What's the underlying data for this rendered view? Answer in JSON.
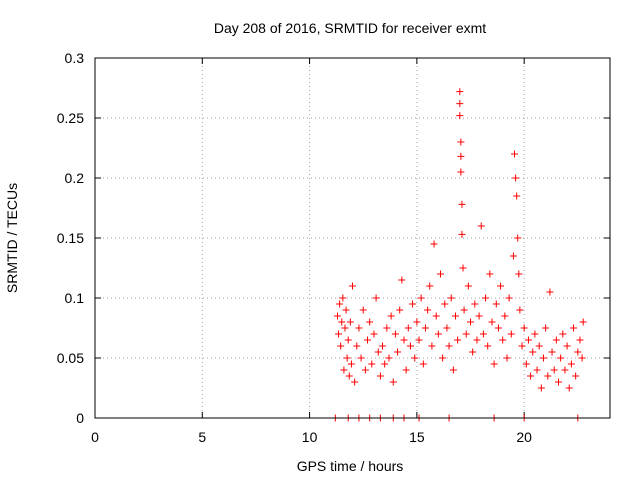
{
  "chart_data": {
    "type": "scatter",
    "title": "Day 208 of 2016, SRMTID for receiver exmt",
    "xlabel": "GPS time / hours",
    "ylabel": "SRMTID / TECUs",
    "xlim": [
      0,
      24
    ],
    "ylim": [
      0,
      0.3
    ],
    "x_ticks": [
      0,
      5,
      10,
      15,
      20
    ],
    "x_tick_labels": [
      "0",
      "5",
      "10",
      "15",
      "20"
    ],
    "y_ticks": [
      0,
      0.05,
      0.1,
      0.15,
      0.2,
      0.25,
      0.3
    ],
    "y_tick_labels": [
      "0",
      "0.05",
      "0.1",
      "0.15",
      "0.2",
      "0.25",
      "0.3"
    ],
    "grid": true,
    "marker": "+",
    "series": [
      {
        "name": "SRMTID",
        "color": "#ff0000",
        "points": [
          [
            11.3,
            0.085
          ],
          [
            11.35,
            0.07
          ],
          [
            11.4,
            0.095
          ],
          [
            11.45,
            0.06
          ],
          [
            11.5,
            0.08
          ],
          [
            11.55,
            0.1
          ],
          [
            11.6,
            0.04
          ],
          [
            11.65,
            0.075
          ],
          [
            11.7,
            0.09
          ],
          [
            11.75,
            0.05
          ],
          [
            11.8,
            0.065
          ],
          [
            11.85,
            0.035
          ],
          [
            11.9,
            0.08
          ],
          [
            11.95,
            0.045
          ],
          [
            12.0,
            0.11
          ],
          [
            12.1,
            0.03
          ],
          [
            12.2,
            0.06
          ],
          [
            12.3,
            0.075
          ],
          [
            12.4,
            0.05
          ],
          [
            12.5,
            0.09
          ],
          [
            12.6,
            0.04
          ],
          [
            12.7,
            0.065
          ],
          [
            12.8,
            0.08
          ],
          [
            12.9,
            0.045
          ],
          [
            13.0,
            0.07
          ],
          [
            13.1,
            0.1
          ],
          [
            13.2,
            0.055
          ],
          [
            13.3,
            0.035
          ],
          [
            13.4,
            0.06
          ],
          [
            13.5,
            0.045
          ],
          [
            13.6,
            0.075
          ],
          [
            13.7,
            0.05
          ],
          [
            13.8,
            0.085
          ],
          [
            13.9,
            0.03
          ],
          [
            14.0,
            0.07
          ],
          [
            14.1,
            0.055
          ],
          [
            14.2,
            0.09
          ],
          [
            14.3,
            0.115
          ],
          [
            14.4,
            0.065
          ],
          [
            14.5,
            0.04
          ],
          [
            14.6,
            0.075
          ],
          [
            14.7,
            0.06
          ],
          [
            14.8,
            0.095
          ],
          [
            14.9,
            0.05
          ],
          [
            15.0,
            0.08
          ],
          [
            15.1,
            0.065
          ],
          [
            15.2,
            0.1
          ],
          [
            15.3,
            0.045
          ],
          [
            15.4,
            0.075
          ],
          [
            15.5,
            0.09
          ],
          [
            15.6,
            0.11
          ],
          [
            15.7,
            0.06
          ],
          [
            15.8,
            0.145
          ],
          [
            15.9,
            0.085
          ],
          [
            16.0,
            0.07
          ],
          [
            16.1,
            0.12
          ],
          [
            16.2,
            0.05
          ],
          [
            16.3,
            0.095
          ],
          [
            16.4,
            0.075
          ],
          [
            16.5,
            0.06
          ],
          [
            16.6,
            0.1
          ],
          [
            16.7,
            0.04
          ],
          [
            16.8,
            0.085
          ],
          [
            16.9,
            0.065
          ],
          [
            17.0,
            0.272
          ],
          [
            17.0,
            0.262
          ],
          [
            17.0,
            0.252
          ],
          [
            17.05,
            0.23
          ],
          [
            17.05,
            0.218
          ],
          [
            17.05,
            0.205
          ],
          [
            17.1,
            0.178
          ],
          [
            17.1,
            0.153
          ],
          [
            17.15,
            0.125
          ],
          [
            17.2,
            0.09
          ],
          [
            17.3,
            0.07
          ],
          [
            17.4,
            0.11
          ],
          [
            17.5,
            0.08
          ],
          [
            17.6,
            0.055
          ],
          [
            17.7,
            0.095
          ],
          [
            17.8,
            0.065
          ],
          [
            17.9,
            0.085
          ],
          [
            18.0,
            0.16
          ],
          [
            18.1,
            0.07
          ],
          [
            18.2,
            0.1
          ],
          [
            18.3,
            0.06
          ],
          [
            18.4,
            0.12
          ],
          [
            18.5,
            0.08
          ],
          [
            18.6,
            0.045
          ],
          [
            18.7,
            0.095
          ],
          [
            18.8,
            0.075
          ],
          [
            18.9,
            0.11
          ],
          [
            19.0,
            0.065
          ],
          [
            19.1,
            0.085
          ],
          [
            19.2,
            0.05
          ],
          [
            19.3,
            0.1
          ],
          [
            19.4,
            0.07
          ],
          [
            19.5,
            0.135
          ],
          [
            19.55,
            0.22
          ],
          [
            19.6,
            0.2
          ],
          [
            19.65,
            0.185
          ],
          [
            19.7,
            0.15
          ],
          [
            19.75,
            0.12
          ],
          [
            19.8,
            0.09
          ],
          [
            19.9,
            0.06
          ],
          [
            20.0,
            0.075
          ],
          [
            20.1,
            0.045
          ],
          [
            20.2,
            0.065
          ],
          [
            20.3,
            0.035
          ],
          [
            20.4,
            0.055
          ],
          [
            20.5,
            0.07
          ],
          [
            20.6,
            0.04
          ],
          [
            20.7,
            0.06
          ],
          [
            20.8,
            0.025
          ],
          [
            20.9,
            0.05
          ],
          [
            21.0,
            0.075
          ],
          [
            21.1,
            0.035
          ],
          [
            21.2,
            0.105
          ],
          [
            21.3,
            0.055
          ],
          [
            21.4,
            0.04
          ],
          [
            21.5,
            0.065
          ],
          [
            21.6,
            0.03
          ],
          [
            21.7,
            0.05
          ],
          [
            21.8,
            0.07
          ],
          [
            21.9,
            0.04
          ],
          [
            22.0,
            0.06
          ],
          [
            22.1,
            0.025
          ],
          [
            22.2,
            0.045
          ],
          [
            22.3,
            0.075
          ],
          [
            22.4,
            0.035
          ],
          [
            22.5,
            0.055
          ],
          [
            22.6,
            0.065
          ],
          [
            22.7,
            0.05
          ],
          [
            22.75,
            0.08
          ],
          [
            11.2,
            0.0
          ],
          [
            11.8,
            0.0
          ],
          [
            12.3,
            0.0
          ],
          [
            12.8,
            0.0
          ],
          [
            13.3,
            0.0
          ],
          [
            13.9,
            0.0
          ],
          [
            14.4,
            0.0
          ],
          [
            15.1,
            0.0
          ],
          [
            16.5,
            0.0
          ],
          [
            18.6,
            0.0
          ],
          [
            20.0,
            0.0
          ],
          [
            22.5,
            0.0
          ]
        ]
      }
    ]
  }
}
